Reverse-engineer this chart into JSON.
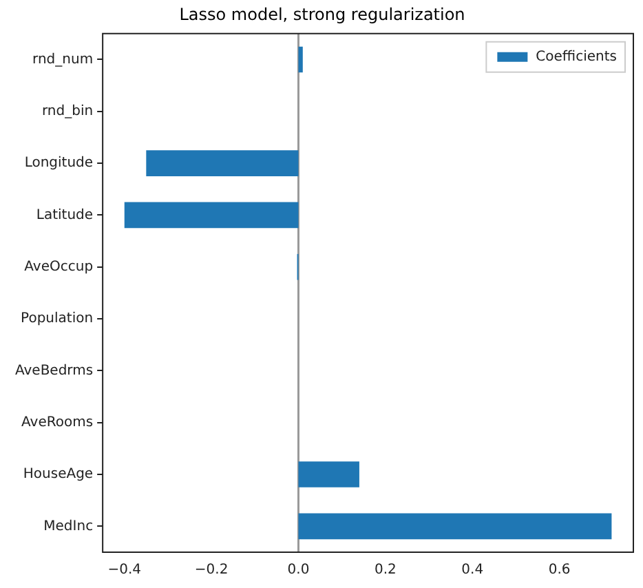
{
  "chart_data": {
    "type": "bar",
    "orientation": "horizontal",
    "title": "Lasso model, strong regularization",
    "categories": [
      "rnd_num",
      "rnd_bin",
      "Longitude",
      "Latitude",
      "AveOccup",
      "Population",
      "AveBedrms",
      "AveRooms",
      "HouseAge",
      "MedInc"
    ],
    "series": [
      {
        "name": "Coefficients",
        "color": "#1f77b4",
        "values": [
          0.01,
          0,
          -0.35,
          -0.4,
          -0.003,
          0,
          0,
          0,
          0.14,
          0.72
        ]
      }
    ],
    "xlim": [
      -0.45,
      0.77
    ],
    "xticks": [
      {
        "value": -0.4,
        "label": "−0.4"
      },
      {
        "value": -0.2,
        "label": "−0.2"
      },
      {
        "value": 0,
        "label": "0.0"
      },
      {
        "value": 0.2,
        "label": "0.2"
      },
      {
        "value": 0.4,
        "label": "0.4"
      },
      {
        "value": 0.6,
        "label": "0.6"
      }
    ],
    "ref_lines": [
      {
        "axis": "x",
        "value": 0,
        "color": "#999999"
      }
    ],
    "grid": false,
    "legend": "top right"
  }
}
